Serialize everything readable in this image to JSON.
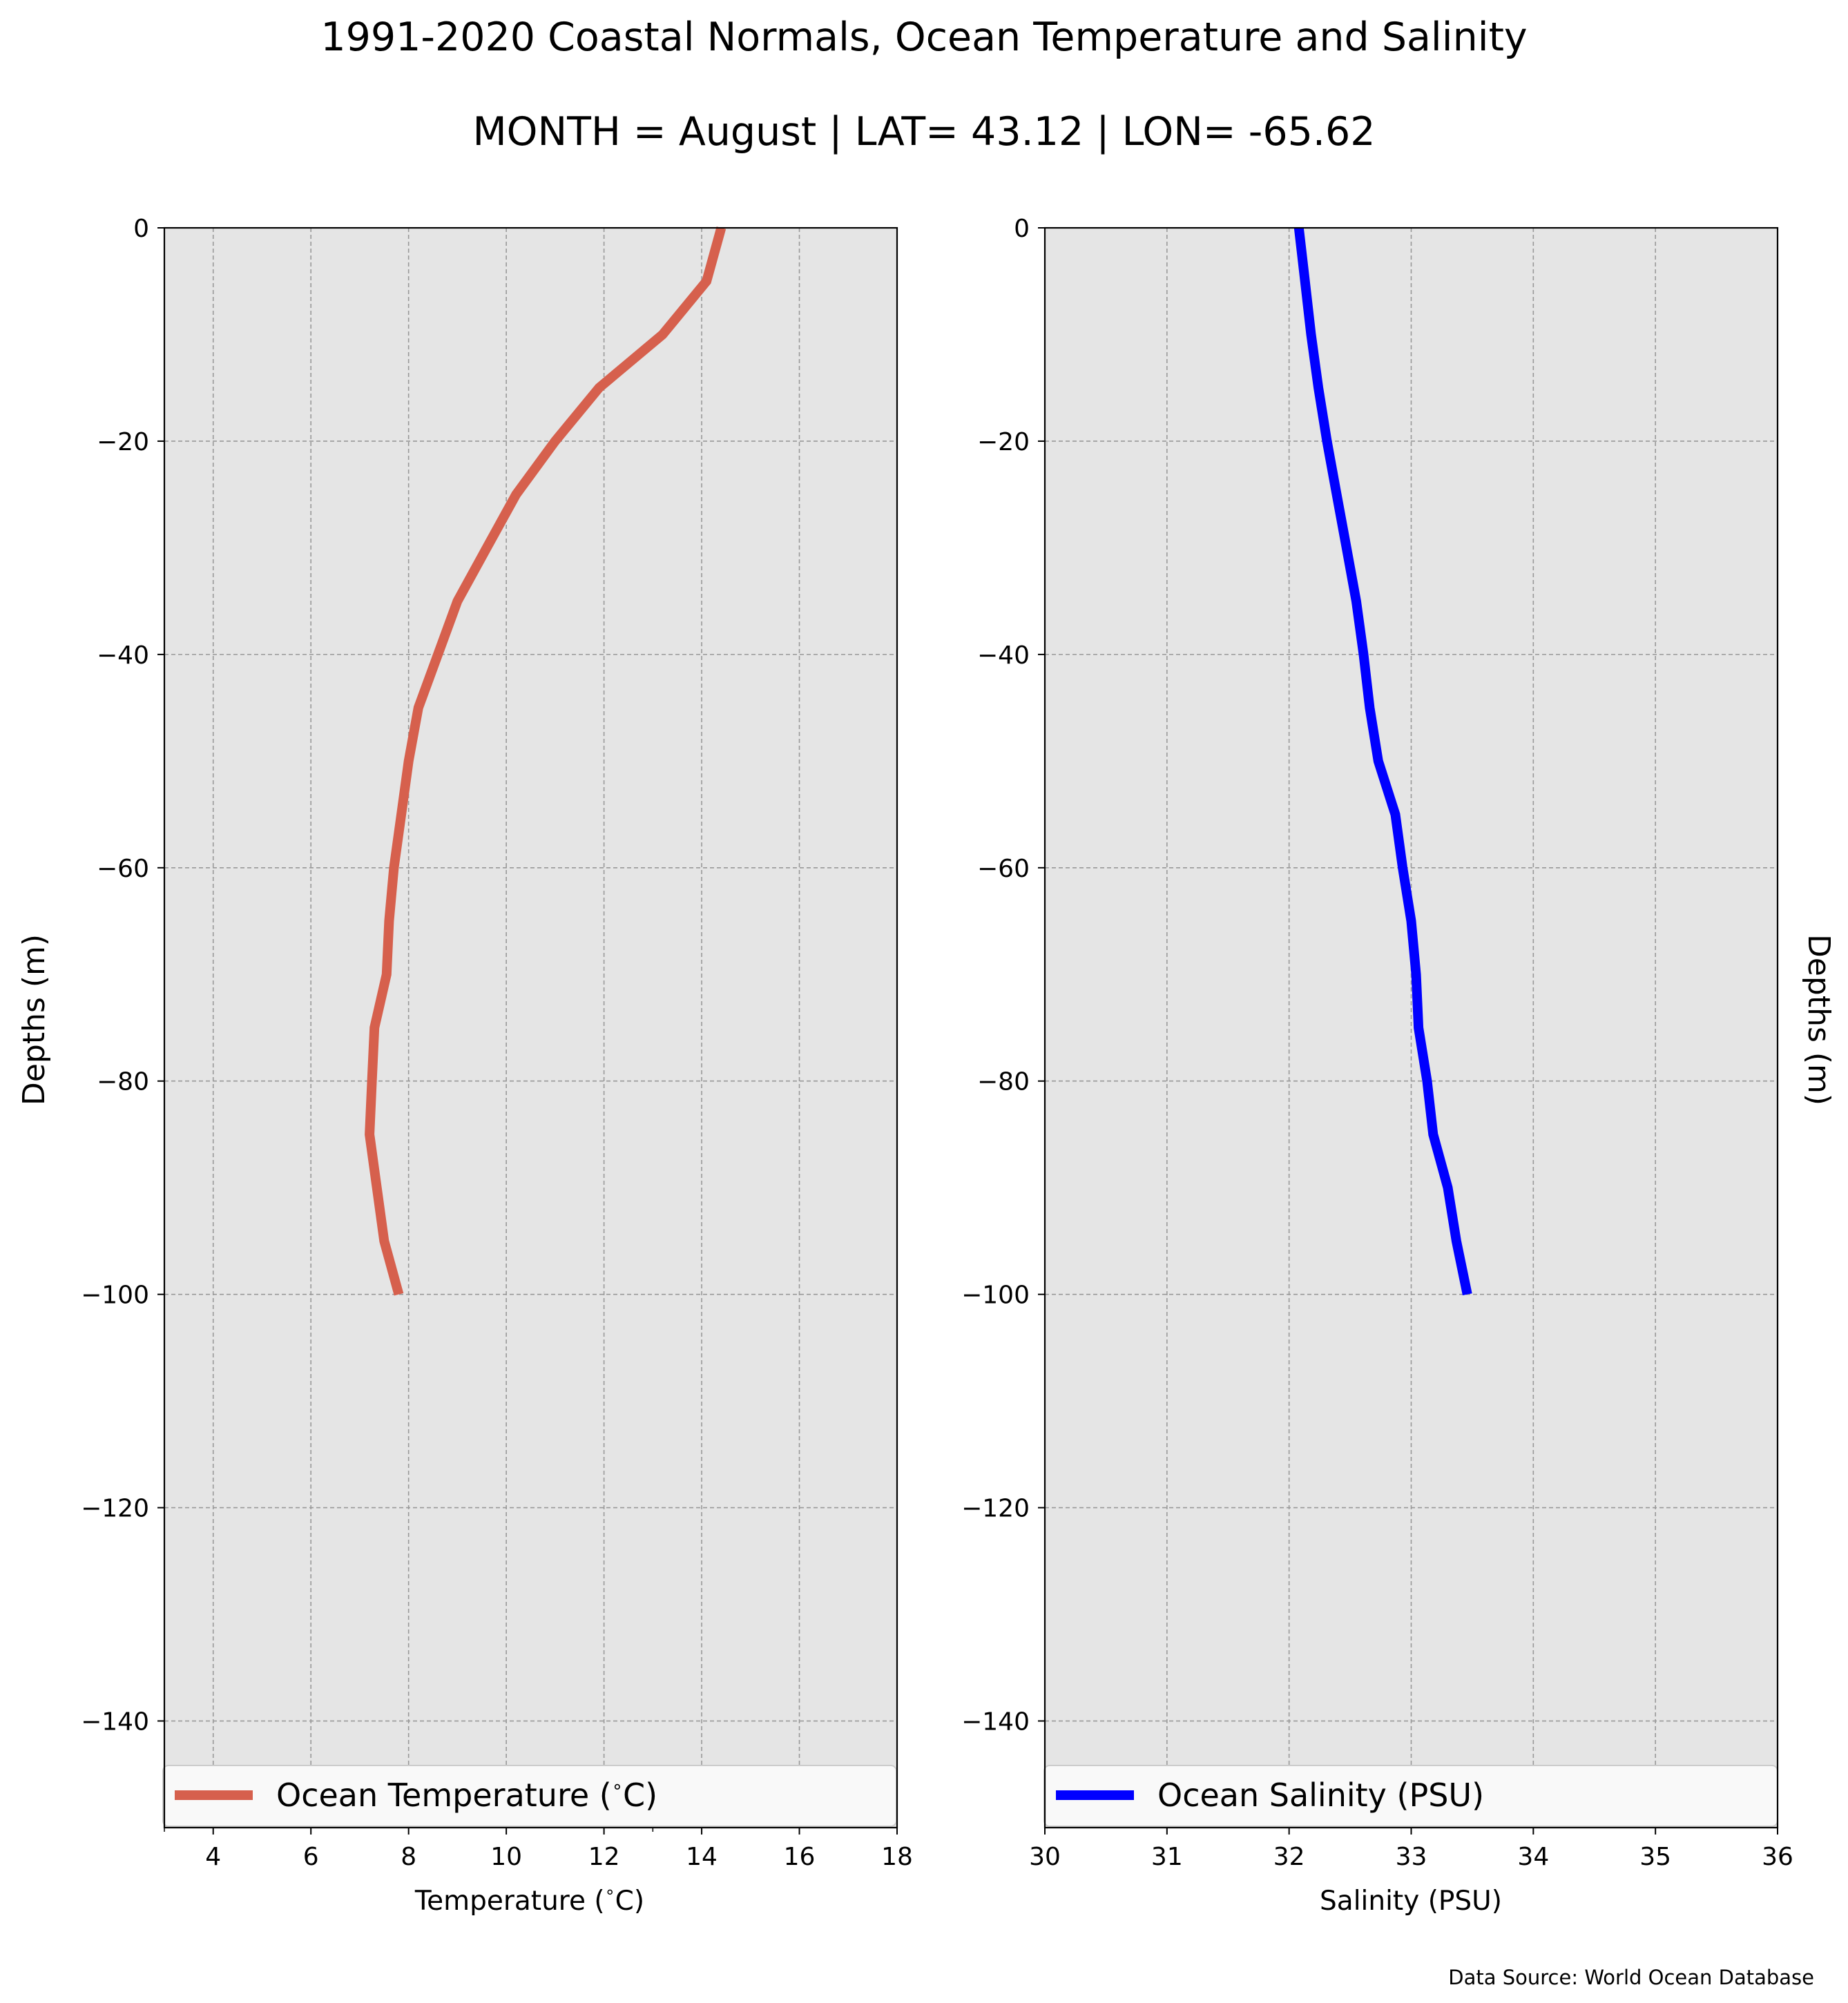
{
  "figure": {
    "title": "1991-2020 Coastal Normals, Ocean Temperature and Salinity",
    "subtitle": "MONTH = August | LAT= 43.12 | LON= -65.62",
    "source": "Data Source: World Ocean Database",
    "background": "#ffffff",
    "plot_background": "#e5e5e5",
    "grid_color": "#999999"
  },
  "chart_data": [
    {
      "type": "line",
      "xlabel": "Temperature ($^\\circ$C)",
      "xlabel_text": "Temperature (",
      "xlabel_deg": "∘",
      "xlabel_tail": "C)",
      "ylabel": "Depths (m)",
      "xlim": [
        3,
        18
      ],
      "ylim": [
        -150,
        0
      ],
      "xticks": [
        4,
        6,
        8,
        10,
        12,
        14,
        16,
        18
      ],
      "xticks_minor": [
        3,
        13
      ],
      "yticks": [
        0,
        -20,
        -40,
        -60,
        -80,
        -100,
        -120,
        -140
      ],
      "ytick_labels": [
        "0",
        "−20",
        "−40",
        "−60",
        "−80",
        "−100",
        "−120",
        "−140"
      ],
      "grid": true,
      "legend_position": "lower-center",
      "series": [
        {
          "name": "Ocean Temperature ($^\\circ$C)",
          "legend_text": "Ocean Temperature (",
          "legend_deg": "∘",
          "legend_tail": "C)",
          "color": "#d6604d",
          "x": [
            14.4,
            14.1,
            13.2,
            11.9,
            11.0,
            10.2,
            9.6,
            9.0,
            8.6,
            8.2,
            8.0,
            7.85,
            7.7,
            7.6,
            7.55,
            7.3,
            7.25,
            7.2,
            7.35,
            7.5,
            7.8
          ],
          "y": [
            0,
            -5,
            -10,
            -15,
            -20,
            -25,
            -30,
            -35,
            -40,
            -45,
            -50,
            -55,
            -60,
            -65,
            -70,
            -75,
            -80,
            -85,
            -90,
            -95,
            -100
          ]
        }
      ]
    },
    {
      "type": "line",
      "xlabel": "Salinity (PSU)",
      "ylabel": "Depths (m)",
      "xlim": [
        30,
        36
      ],
      "ylim": [
        -150,
        0
      ],
      "xticks": [
        30,
        31,
        32,
        33,
        34,
        35,
        36
      ],
      "yticks": [
        0,
        -20,
        -40,
        -60,
        -80,
        -100,
        -120,
        -140
      ],
      "ytick_labels": [
        "0",
        "−20",
        "−40",
        "−60",
        "−80",
        "−100",
        "−120",
        "−140"
      ],
      "grid": true,
      "legend_position": "lower-center",
      "series": [
        {
          "name": "Ocean Salinity (PSU)",
          "color": "#0000ff",
          "x": [
            32.08,
            32.13,
            32.18,
            32.24,
            32.31,
            32.39,
            32.47,
            32.55,
            32.61,
            32.66,
            32.73,
            32.87,
            32.93,
            33.0,
            33.04,
            33.06,
            33.13,
            33.18,
            33.3,
            33.37,
            33.46
          ],
          "y": [
            0,
            -5,
            -10,
            -15,
            -20,
            -25,
            -30,
            -35,
            -40,
            -45,
            -50,
            -55,
            -60,
            -65,
            -70,
            -75,
            -80,
            -85,
            -90,
            -95,
            -100
          ]
        }
      ]
    }
  ]
}
